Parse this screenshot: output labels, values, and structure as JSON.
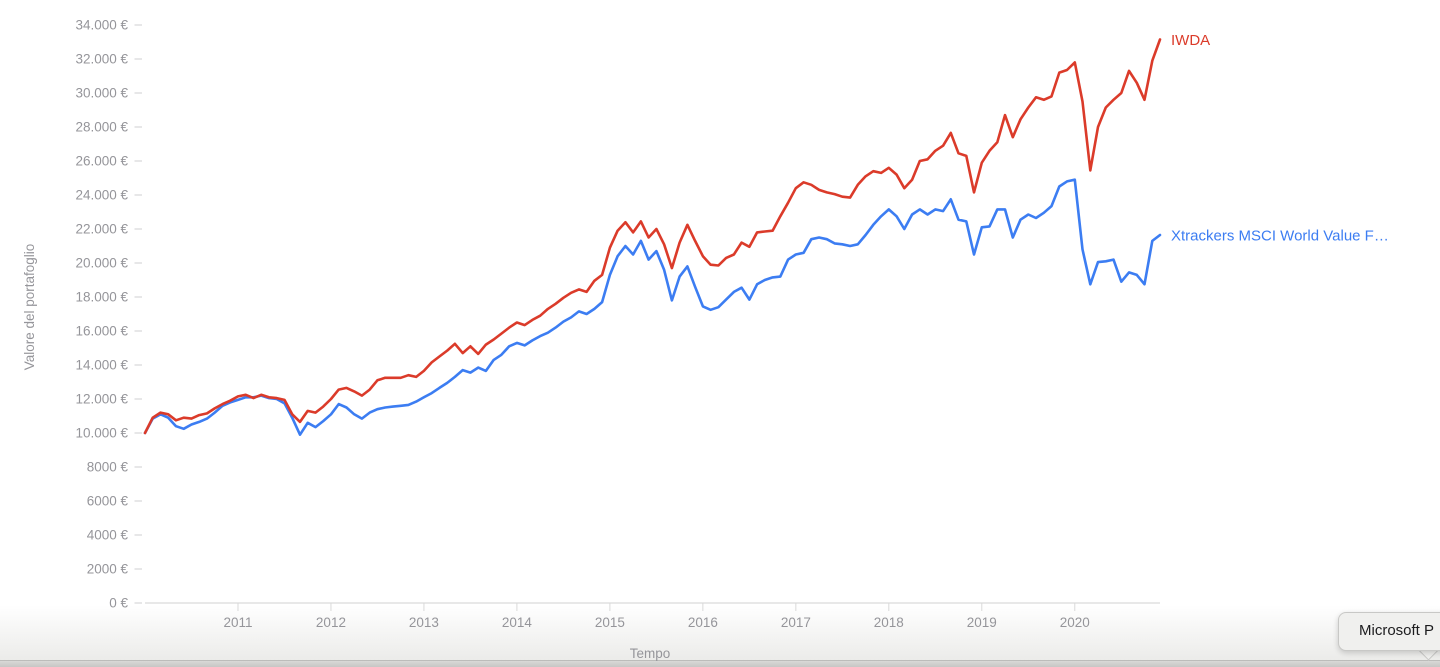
{
  "chart_data": {
    "type": "line",
    "title": "",
    "xlabel": "Tempo",
    "ylabel": "Valore del portafoglio",
    "grid": false,
    "legend_position": "end-of-line",
    "x_interval": "monthly",
    "x_start": "2010-01",
    "x_end": "2020-12",
    "x_year_tick_labels": [
      "2011",
      "2012",
      "2013",
      "2014",
      "2015",
      "2016",
      "2017",
      "2018",
      "2019",
      "2020"
    ],
    "ylim": [
      0,
      34000
    ],
    "y_tick_values": [
      34000,
      32000,
      30000,
      28000,
      26000,
      24000,
      22000,
      20000,
      18000,
      16000,
      14000,
      12000,
      10000,
      8000,
      6000,
      4000,
      2000,
      0
    ],
    "y_tick_labels": [
      "34.000 €",
      "32.000 €",
      "30.000 €",
      "28.000 €",
      "26.000 €",
      "24.000 €",
      "22.000 €",
      "20.000 €",
      "18.000 €",
      "16.000 €",
      "14.000 €",
      "12.000 €",
      "10.000 €",
      "8000 €",
      "6000 €",
      "4000 €",
      "2000 €",
      "0 €"
    ],
    "series": [
      {
        "name": "IWDA",
        "slug": "iwda",
        "color": "#db3b2a",
        "values": [
          10000,
          10900,
          11200,
          11100,
          10750,
          10900,
          10850,
          11050,
          11150,
          11450,
          11700,
          11900,
          12150,
          12250,
          12050,
          12250,
          12100,
          12050,
          11950,
          11100,
          10650,
          11300,
          11200,
          11550,
          12000,
          12550,
          12650,
          12450,
          12200,
          12550,
          13100,
          13250,
          13250,
          13250,
          13400,
          13300,
          13650,
          14150,
          14500,
          14850,
          15250,
          14700,
          15100,
          14650,
          15200,
          15500,
          15850,
          16200,
          16500,
          16350,
          16650,
          16900,
          17300,
          17600,
          17950,
          18250,
          18450,
          18300,
          18950,
          19300,
          20900,
          21900,
          22400,
          21800,
          22450,
          21500,
          22000,
          21100,
          19700,
          21200,
          22250,
          21300,
          20400,
          19900,
          19850,
          20300,
          20500,
          21200,
          20950,
          21800,
          21850,
          21900,
          22750,
          23550,
          24400,
          24750,
          24600,
          24300,
          24150,
          24050,
          23900,
          23850,
          24600,
          25100,
          25400,
          25300,
          25600,
          25200,
          24400,
          24900,
          26000,
          26100,
          26600,
          26900,
          27650,
          26450,
          26300,
          24150,
          25900,
          26600,
          27100,
          28700,
          27400,
          28450,
          29150,
          29750,
          29600,
          29800,
          31200,
          31350,
          31800,
          29500,
          25450,
          28000,
          29150,
          29600,
          30000,
          31300,
          30600,
          29600,
          31900,
          33150
        ]
      },
      {
        "name": "Xtrackers MSCI World Value F…",
        "slug": "xtrackers-msci-world-value",
        "color": "#3c7df2",
        "values": [
          10000,
          10850,
          11100,
          10900,
          10400,
          10250,
          10500,
          10650,
          10850,
          11200,
          11600,
          11800,
          11950,
          12100,
          12100,
          12200,
          12050,
          12000,
          11750,
          10900,
          9900,
          10600,
          10350,
          10700,
          11100,
          11700,
          11500,
          11100,
          10850,
          11200,
          11400,
          11500,
          11550,
          11600,
          11650,
          11850,
          12100,
          12350,
          12650,
          12950,
          13300,
          13700,
          13550,
          13850,
          13650,
          14300,
          14600,
          15100,
          15300,
          15150,
          15450,
          15700,
          15900,
          16200,
          16550,
          16800,
          17150,
          17000,
          17300,
          17700,
          19300,
          20400,
          21000,
          20500,
          21300,
          20200,
          20700,
          19600,
          17800,
          19200,
          19800,
          18600,
          17450,
          17250,
          17400,
          17850,
          18300,
          18550,
          17850,
          18750,
          19000,
          19150,
          19200,
          20200,
          20500,
          20600,
          21400,
          21500,
          21400,
          21150,
          21100,
          21000,
          21100,
          21650,
          22250,
          22750,
          23150,
          22750,
          22000,
          22850,
          23150,
          22850,
          23150,
          23050,
          23750,
          22550,
          22450,
          20500,
          22100,
          22150,
          23150,
          23150,
          21500,
          22550,
          22850,
          22650,
          22950,
          23350,
          24500,
          24800,
          24900,
          20800,
          18750,
          20050,
          20100,
          20200,
          18900,
          19450,
          19300,
          18750,
          21300,
          21650
        ]
      }
    ],
    "axis_text_color": "#95959a",
    "axis_line_color": "#d9d9d9",
    "tick_dash_color": "#cfcfd2"
  },
  "dock_tooltip": {
    "label": "Microsoft P"
  }
}
